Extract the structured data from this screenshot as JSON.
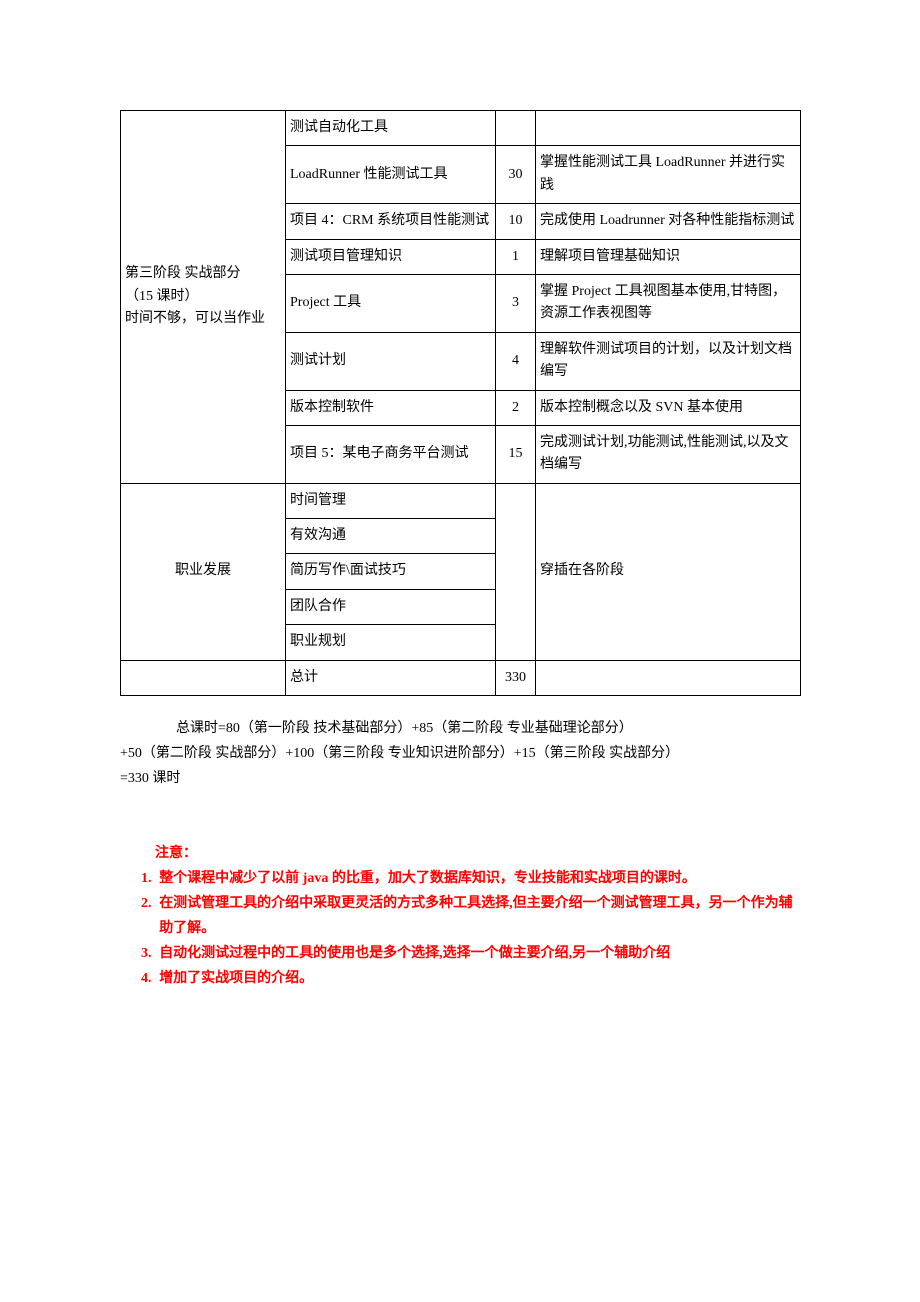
{
  "table": {
    "col1_stage": "第三阶段 实战部分（15 课时）\n时间不够，可以当作业",
    "col1_career": "职业发展",
    "rows": [
      {
        "c2": "测试自动化工具",
        "c3": "",
        "c4": ""
      },
      {
        "c2": "LoadRunner 性能测试工具",
        "c3": "30",
        "c4": "掌握性能测试工具 LoadRunner 并进行实践"
      },
      {
        "c2": "项目 4：CRM 系统项目性能测试",
        "c3": "10",
        "c4": "完成使用 Loadrunner 对各种性能指标测试"
      },
      {
        "c2": "测试项目管理知识",
        "c3": "1",
        "c4": "理解项目管理基础知识"
      },
      {
        "c2": "Project 工具",
        "c3": "3",
        "c4": "掌握 Project 工具视图基本使用,甘特图，资源工作表视图等"
      },
      {
        "c2": "测试计划",
        "c3": "4",
        "c4": "理解软件测试项目的计划，以及计划文档编写"
      },
      {
        "c2": "版本控制软件",
        "c3": "2",
        "c4": "版本控制概念以及 SVN 基本使用"
      },
      {
        "c2": "项目 5：某电子商务平台测试",
        "c3": "15",
        "c4": "完成测试计划,功能测试,性能测试,以及文档编写"
      }
    ],
    "career_items": [
      "时间管理",
      "有效沟通",
      "简历写作\\面试技巧",
      "团队合作",
      "职业规划"
    ],
    "career_note": "穿插在各阶段",
    "total_label": "总计",
    "total_value": "330"
  },
  "summary": {
    "line1": "总课时=80（第一阶段 技术基础部分）+85（第二阶段 专业基础理论部分）",
    "line2": "+50（第二阶段 实战部分）+100（第三阶段 专业知识进阶部分）+15（第三阶段 实战部分）",
    "line3": "=330 课时"
  },
  "attention": "注意：",
  "notes": [
    "整个课程中减少了以前 java 的比重，加大了数据库知识，专业技能和实战项目的课时。",
    "在测试管理工具的介绍中采取更灵活的方式多种工具选择,但主要介绍一个测试管理工具，另一个作为辅助了解。",
    "自动化测试过程中的工具的使用也是多个选择,选择一个做主要介绍,另一个辅助介绍",
    "增加了实战项目的介绍。"
  ]
}
